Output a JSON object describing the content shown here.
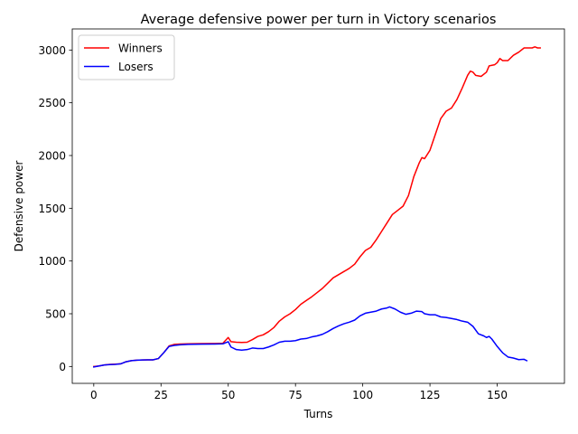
{
  "chart_data": {
    "type": "line",
    "title": "Average defensive power per turn in Victory scenarios",
    "xlabel": "Turns",
    "ylabel": "Defensive power",
    "xlim": [
      -8,
      175
    ],
    "ylim": [
      -160,
      3200
    ],
    "xticks": [
      0,
      25,
      50,
      75,
      100,
      125,
      150
    ],
    "yticks": [
      0,
      500,
      1000,
      1500,
      2000,
      2500,
      3000
    ],
    "grid": false,
    "legend_position": "top-left",
    "series": [
      {
        "name": "Winners",
        "color": "#ff0000",
        "points": [
          [
            0,
            0
          ],
          [
            2,
            5
          ],
          [
            4,
            15
          ],
          [
            6,
            20
          ],
          [
            8,
            22
          ],
          [
            10,
            25
          ],
          [
            12,
            45
          ],
          [
            14,
            55
          ],
          [
            16,
            60
          ],
          [
            18,
            62
          ],
          [
            20,
            63
          ],
          [
            22,
            63
          ],
          [
            24,
            75
          ],
          [
            26,
            130
          ],
          [
            28,
            195
          ],
          [
            30,
            210
          ],
          [
            32,
            213
          ],
          [
            35,
            215
          ],
          [
            40,
            217
          ],
          [
            45,
            218
          ],
          [
            48,
            220
          ],
          [
            50,
            275
          ],
          [
            51,
            235
          ],
          [
            53,
            230
          ],
          [
            55,
            228
          ],
          [
            57,
            230
          ],
          [
            59,
            255
          ],
          [
            61,
            285
          ],
          [
            63,
            300
          ],
          [
            65,
            330
          ],
          [
            67,
            370
          ],
          [
            69,
            430
          ],
          [
            71,
            470
          ],
          [
            73,
            500
          ],
          [
            75,
            540
          ],
          [
            77,
            590
          ],
          [
            79,
            625
          ],
          [
            81,
            660
          ],
          [
            83,
            700
          ],
          [
            85,
            740
          ],
          [
            87,
            790
          ],
          [
            89,
            840
          ],
          [
            91,
            870
          ],
          [
            93,
            900
          ],
          [
            95,
            930
          ],
          [
            97,
            970
          ],
          [
            99,
            1040
          ],
          [
            101,
            1100
          ],
          [
            103,
            1130
          ],
          [
            105,
            1200
          ],
          [
            107,
            1280
          ],
          [
            109,
            1360
          ],
          [
            111,
            1440
          ],
          [
            113,
            1480
          ],
          [
            115,
            1520
          ],
          [
            117,
            1620
          ],
          [
            119,
            1800
          ],
          [
            121,
            1930
          ],
          [
            122,
            1980
          ],
          [
            123,
            1970
          ],
          [
            125,
            2050
          ],
          [
            127,
            2200
          ],
          [
            129,
            2350
          ],
          [
            131,
            2420
          ],
          [
            133,
            2450
          ],
          [
            135,
            2530
          ],
          [
            137,
            2640
          ],
          [
            139,
            2760
          ],
          [
            140,
            2800
          ],
          [
            141,
            2790
          ],
          [
            142,
            2760
          ],
          [
            144,
            2750
          ],
          [
            146,
            2790
          ],
          [
            147,
            2850
          ],
          [
            149,
            2860
          ],
          [
            150,
            2880
          ],
          [
            151,
            2920
          ],
          [
            152,
            2900
          ],
          [
            154,
            2900
          ],
          [
            156,
            2950
          ],
          [
            158,
            2980
          ],
          [
            160,
            3020
          ],
          [
            161,
            3020
          ],
          [
            163,
            3020
          ],
          [
            164,
            3030
          ],
          [
            165,
            3020
          ],
          [
            166,
            3020
          ]
        ]
      },
      {
        "name": "Losers",
        "color": "#0000ff",
        "points": [
          [
            0,
            -5
          ],
          [
            2,
            5
          ],
          [
            4,
            15
          ],
          [
            6,
            18
          ],
          [
            8,
            20
          ],
          [
            10,
            25
          ],
          [
            12,
            45
          ],
          [
            14,
            55
          ],
          [
            16,
            60
          ],
          [
            18,
            62
          ],
          [
            20,
            63
          ],
          [
            22,
            63
          ],
          [
            24,
            75
          ],
          [
            26,
            130
          ],
          [
            28,
            190
          ],
          [
            30,
            200
          ],
          [
            32,
            205
          ],
          [
            35,
            210
          ],
          [
            40,
            212
          ],
          [
            45,
            213
          ],
          [
            48,
            215
          ],
          [
            50,
            235
          ],
          [
            51,
            185
          ],
          [
            53,
            160
          ],
          [
            55,
            155
          ],
          [
            57,
            160
          ],
          [
            59,
            175
          ],
          [
            61,
            170
          ],
          [
            63,
            170
          ],
          [
            65,
            185
          ],
          [
            67,
            205
          ],
          [
            69,
            230
          ],
          [
            71,
            240
          ],
          [
            73,
            240
          ],
          [
            75,
            245
          ],
          [
            77,
            260
          ],
          [
            79,
            265
          ],
          [
            81,
            280
          ],
          [
            83,
            290
          ],
          [
            85,
            305
          ],
          [
            87,
            330
          ],
          [
            89,
            360
          ],
          [
            91,
            385
          ],
          [
            93,
            405
          ],
          [
            95,
            420
          ],
          [
            97,
            440
          ],
          [
            99,
            480
          ],
          [
            101,
            505
          ],
          [
            103,
            515
          ],
          [
            105,
            525
          ],
          [
            107,
            545
          ],
          [
            109,
            555
          ],
          [
            110,
            565
          ],
          [
            112,
            545
          ],
          [
            114,
            515
          ],
          [
            116,
            495
          ],
          [
            118,
            505
          ],
          [
            120,
            525
          ],
          [
            122,
            520
          ],
          [
            123,
            500
          ],
          [
            125,
            490
          ],
          [
            127,
            490
          ],
          [
            129,
            470
          ],
          [
            131,
            465
          ],
          [
            133,
            455
          ],
          [
            135,
            445
          ],
          [
            137,
            430
          ],
          [
            139,
            420
          ],
          [
            141,
            380
          ],
          [
            143,
            310
          ],
          [
            145,
            290
          ],
          [
            146,
            275
          ],
          [
            147,
            285
          ],
          [
            148,
            260
          ],
          [
            150,
            190
          ],
          [
            152,
            130
          ],
          [
            154,
            90
          ],
          [
            156,
            80
          ],
          [
            158,
            65
          ],
          [
            160,
            68
          ],
          [
            161,
            55
          ]
        ]
      }
    ]
  }
}
